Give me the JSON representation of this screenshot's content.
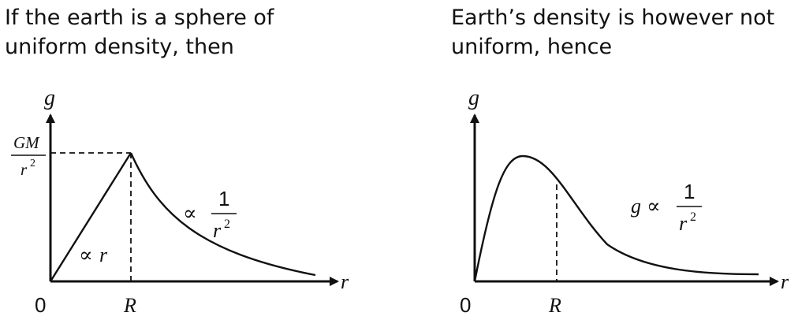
{
  "left_panel": {
    "heading_line1": "If the earth is a sphere of",
    "heading_line2": "uniform density, then",
    "y_axis_label": "g",
    "x_axis_label": "r",
    "origin_label": "0",
    "radius_label": "R",
    "peak_numerator": "GM",
    "peak_denominator": "r",
    "peak_denominator_exp": "2",
    "inner_relation_symbol": "∝",
    "inner_relation_var": "r",
    "outer_relation_symbol": "∝",
    "outer_numerator": "1",
    "outer_denominator": "r",
    "outer_denominator_exp": "2"
  },
  "right_panel": {
    "heading_line1": "Earth’s density is however not",
    "heading_line2": "uniform, hence",
    "y_axis_label": "g",
    "x_axis_label": "r",
    "origin_label": "0",
    "radius_label": "R",
    "relation_lhs": "g",
    "relation_symbol": "∝",
    "numerator": "1",
    "denominator": "r",
    "denominator_exp": "2"
  },
  "colors": {
    "ink": "#111111"
  }
}
